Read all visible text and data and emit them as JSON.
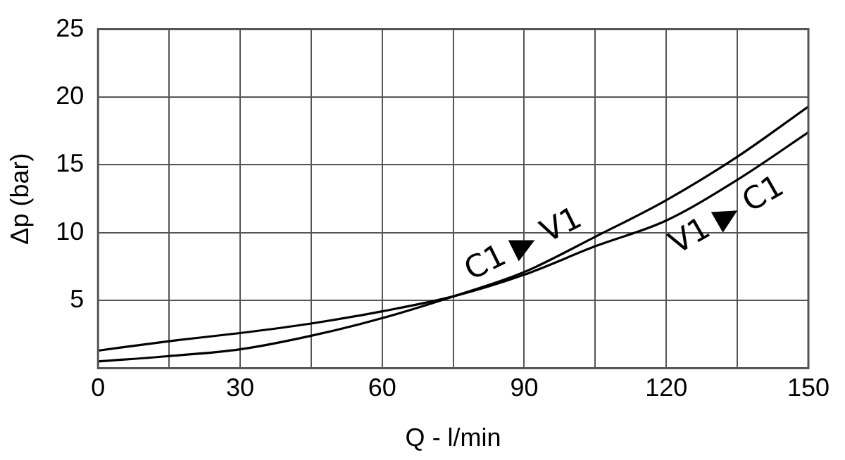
{
  "chart_data": {
    "type": "line",
    "xlabel": "Q - l/min",
    "ylabel": "Δp (bar)",
    "xlim": [
      0,
      150
    ],
    "ylim": [
      0,
      25
    ],
    "xticks": [
      0,
      {
        "value": 15,
        "label": null
      },
      30,
      {
        "value": 45,
        "label": null
      },
      60,
      {
        "value": 75,
        "label": null
      },
      90,
      {
        "value": 105,
        "label": null
      },
      120,
      {
        "value": 135,
        "label": null
      },
      150
    ],
    "yticks": [
      {
        "value": 0,
        "label": null
      },
      5,
      10,
      15,
      20,
      25
    ],
    "grid": true,
    "legend": false,
    "marker": "none",
    "line_style": "solid",
    "x": [
      0,
      15,
      30,
      45,
      60,
      75,
      90,
      105,
      120,
      135,
      150
    ],
    "series": [
      {
        "name": "C1 ▶ V1",
        "color": "#000000",
        "values": [
          0.5,
          0.9,
          1.4,
          2.4,
          3.7,
          5.3,
          7.1,
          9.7,
          12.4,
          15.6,
          19.3
        ]
      },
      {
        "name": "V1 ▶ C1",
        "color": "#000000",
        "values": [
          1.3,
          2.0,
          2.6,
          3.3,
          4.2,
          5.3,
          6.9,
          9.0,
          10.9,
          13.9,
          17.4
        ]
      }
    ]
  }
}
